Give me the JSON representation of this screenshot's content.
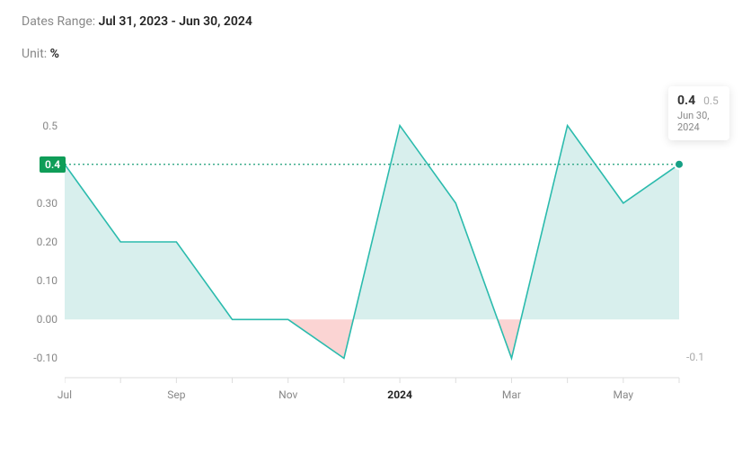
{
  "header": {
    "dates_label": "Dates Range:",
    "dates_value": "Jul 31, 2023 - Jun 30, 2024",
    "unit_label": "Unit:",
    "unit_value": "%"
  },
  "chart": {
    "type": "area",
    "ylim": [
      -0.15,
      0.55
    ],
    "yticks": [
      {
        "v": 0.5,
        "label": "0.5"
      },
      {
        "v": 0.4,
        "label": "0.4",
        "badge": true
      },
      {
        "v": 0.3,
        "label": "0.30"
      },
      {
        "v": 0.2,
        "label": "0.20"
      },
      {
        "v": 0.1,
        "label": "0.10"
      },
      {
        "v": 0.0,
        "label": "0.00"
      },
      {
        "v": -0.1,
        "label": "-0.10"
      }
    ],
    "xticks": [
      {
        "i": 0,
        "label": "Jul"
      },
      {
        "i": 2,
        "label": "Sep"
      },
      {
        "i": 4,
        "label": "Nov"
      },
      {
        "i": 6,
        "label": "2024",
        "bold": true
      },
      {
        "i": 8,
        "label": "Mar"
      },
      {
        "i": 10,
        "label": "May"
      }
    ],
    "values": [
      0.4,
      0.2,
      0.2,
      0.0,
      0.0,
      -0.1,
      0.5,
      0.3,
      -0.1,
      0.5,
      0.3,
      0.4
    ],
    "baseline": 0.0,
    "marker_line": 0.4,
    "colors": {
      "line": "#2bbbad",
      "pos_fill": "rgba(38,166,154,0.18)",
      "neg_fill": "rgba(239,83,80,0.25)",
      "badge_bg": "#0f9d58",
      "badge_text": "#ffffff",
      "dot": "#16a085",
      "axis": "#dddddd",
      "tick_text": "#888888",
      "background": "#ffffff"
    },
    "line_width": 1.6,
    "font_size_ticks": 12
  },
  "tooltip": {
    "value": "0.4",
    "secondary": "0.5",
    "date": "Jun 30, 2024",
    "right_min": "-0.1"
  }
}
